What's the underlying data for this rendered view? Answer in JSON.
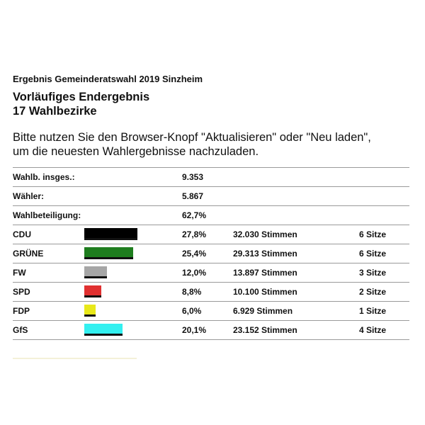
{
  "header": {
    "subtitle": "Ergebnis Gemeinderatswahl 2019 Sinzheim",
    "title_line1": "Vorläufiges Endergebnis",
    "title_line2": "17 Wahlbezirke"
  },
  "notice": {
    "line1": "Bitte nutzen Sie den Browser-Knopf \"Aktualisieren\" oder \"Neu laden\",",
    "line2": "um die neuesten Wahlergebnisse nachzuladen."
  },
  "summary": [
    {
      "label": "Wahlb. insges.:",
      "value": "9.353"
    },
    {
      "label": "Wähler:",
      "value": "5.867"
    },
    {
      "label": "Wahlbeteiligung:",
      "value": "62,7%"
    }
  ],
  "parties": [
    {
      "name": "CDU",
      "percent": "27,8%",
      "share": 0.278,
      "votes": "32.030 Stimmen",
      "seats": "6 Sitze",
      "color": "#000000"
    },
    {
      "name": "GRÜNE",
      "percent": "25,4%",
      "share": 0.254,
      "votes": "29.313 Stimmen",
      "seats": "6 Sitze",
      "color": "#1e7d1e"
    },
    {
      "name": "FW",
      "percent": "12,0%",
      "share": 0.12,
      "votes": "13.897 Stimmen",
      "seats": "3 Sitze",
      "color": "#a6a6a6"
    },
    {
      "name": "SPD",
      "percent": "8,8%",
      "share": 0.088,
      "votes": "10.100 Stimmen",
      "seats": "2 Sitze",
      "color": "#e03030"
    },
    {
      "name": "FDP",
      "percent": "6,0%",
      "share": 0.06,
      "votes": "6.929 Stimmen",
      "seats": "1 Sitze",
      "color": "#e8e81a"
    },
    {
      "name": "GfS",
      "percent": "20,1%",
      "share": 0.201,
      "votes": "23.152 Stimmen",
      "seats": "4 Sitze",
      "color": "#33f0f0"
    }
  ]
}
